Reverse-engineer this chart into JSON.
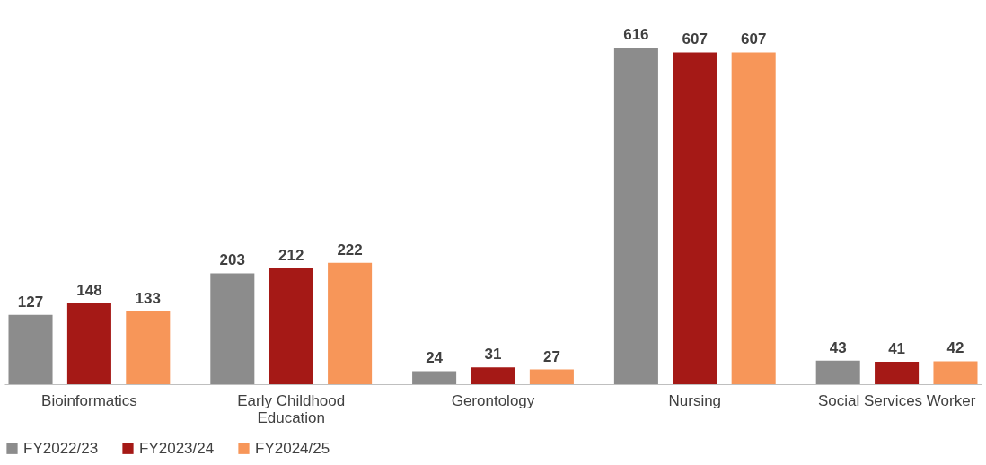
{
  "chart_data": {
    "type": "bar",
    "categories": [
      "Bioinformatics",
      "Early Childhood Education",
      "Gerontology",
      "Nursing",
      "Social Services Worker"
    ],
    "series": [
      {
        "name": "FY2022/23",
        "color": "#8c8c8c",
        "values": [
          127,
          203,
          24,
          616,
          43
        ]
      },
      {
        "name": "FY2023/24",
        "color": "#a51916",
        "values": [
          148,
          212,
          31,
          607,
          41
        ]
      },
      {
        "name": "FY2024/25",
        "color": "#f79659",
        "values": [
          133,
          222,
          27,
          607,
          42
        ]
      }
    ],
    "data_labels": true,
    "legend": "bottom",
    "grid": false
  }
}
